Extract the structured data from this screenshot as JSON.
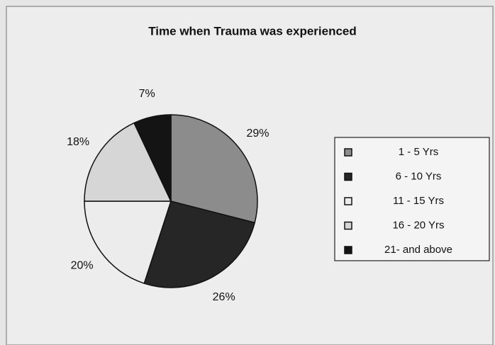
{
  "chart_data": {
    "type": "pie",
    "title": "Time when Trauma was experienced",
    "categories": [
      "1 - 5 Yrs",
      "6 - 10 Yrs",
      "11 - 15 Yrs",
      "16 - 20 Yrs",
      "21- and above"
    ],
    "values": [
      29,
      26,
      20,
      18,
      7
    ],
    "value_labels": [
      "29%",
      "26%",
      "20%",
      "18%",
      "7%"
    ],
    "colors": [
      "#8c8c8c",
      "#262626",
      "#ececec",
      "#d6d6d6",
      "#141414"
    ],
    "legend": "right"
  }
}
